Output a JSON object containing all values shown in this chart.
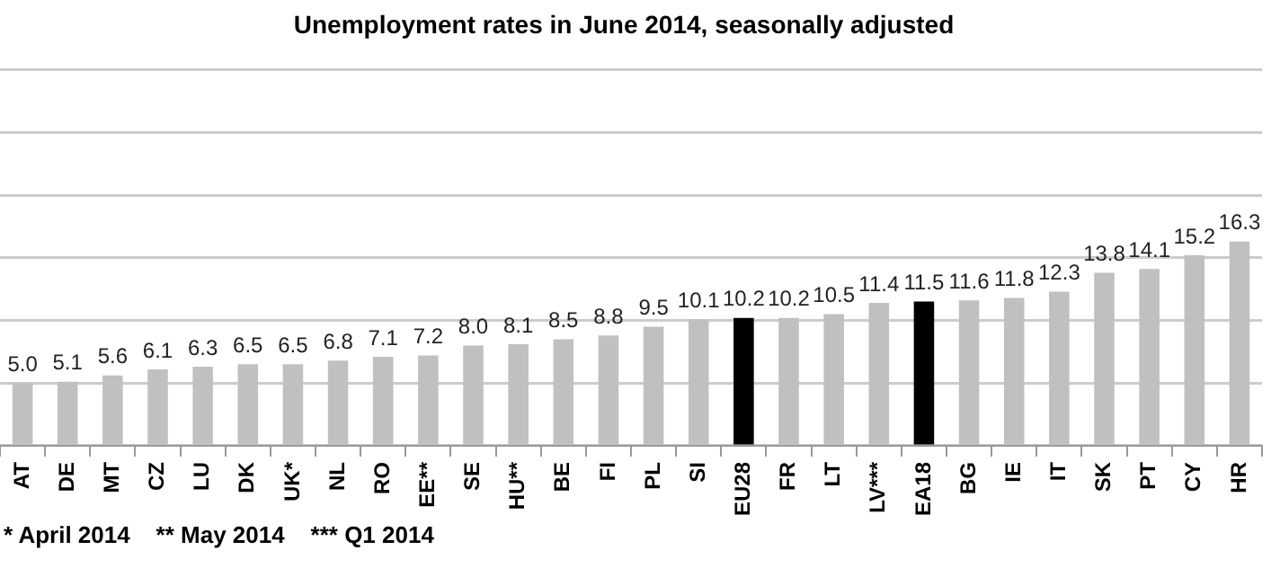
{
  "chart_data": {
    "type": "bar",
    "title": "Unemployment rates in June 2014, seasonally adjusted",
    "categories": [
      "AT",
      "DE",
      "MT",
      "CZ",
      "LU",
      "DK",
      "UK*",
      "NL",
      "RO",
      "EE**",
      "SE",
      "HU**",
      "BE",
      "FI",
      "PL",
      "SI",
      "EU28",
      "FR",
      "LT",
      "LV***",
      "EA18",
      "BG",
      "IE",
      "IT",
      "SK",
      "PT",
      "CY",
      "HR"
    ],
    "values": [
      5.0,
      5.1,
      5.6,
      6.1,
      6.3,
      6.5,
      6.5,
      6.8,
      7.1,
      7.2,
      8.0,
      8.1,
      8.5,
      8.8,
      9.5,
      10.1,
      10.2,
      10.2,
      10.5,
      11.4,
      11.5,
      11.6,
      11.8,
      12.3,
      13.8,
      14.1,
      15.2,
      16.3
    ],
    "colors": [
      "#c0c0c0",
      "#c0c0c0",
      "#c0c0c0",
      "#c0c0c0",
      "#c0c0c0",
      "#c0c0c0",
      "#c0c0c0",
      "#c0c0c0",
      "#c0c0c0",
      "#c0c0c0",
      "#c0c0c0",
      "#c0c0c0",
      "#c0c0c0",
      "#c0c0c0",
      "#c0c0c0",
      "#c0c0c0",
      "#000000",
      "#c0c0c0",
      "#c0c0c0",
      "#c0c0c0",
      "#000000",
      "#c0c0c0",
      "#c0c0c0",
      "#c0c0c0",
      "#c0c0c0",
      "#c0c0c0",
      "#c0c0c0",
      "#c0c0c0"
    ],
    "value_labels": [
      "5.0",
      "5.1",
      "5.6",
      "6.1",
      "6.3",
      "6.5",
      "6.5",
      "6.8",
      "7.1",
      "7.2",
      "8.0",
      "8.1",
      "8.5",
      "8.8",
      "9.5",
      "10.1",
      "10.2",
      "10.2",
      "10.5",
      "11.4",
      "11.5",
      "11.6",
      "11.8",
      "12.3",
      "13.8",
      "14.1",
      "15.2",
      "16.3"
    ],
    "ylim": [
      0,
      30
    ],
    "tick_labels": "x",
    "grid": "y",
    "legend": false,
    "annotations": [
      "* April 2014    ** May 2014    *** Q1 2014"
    ]
  }
}
